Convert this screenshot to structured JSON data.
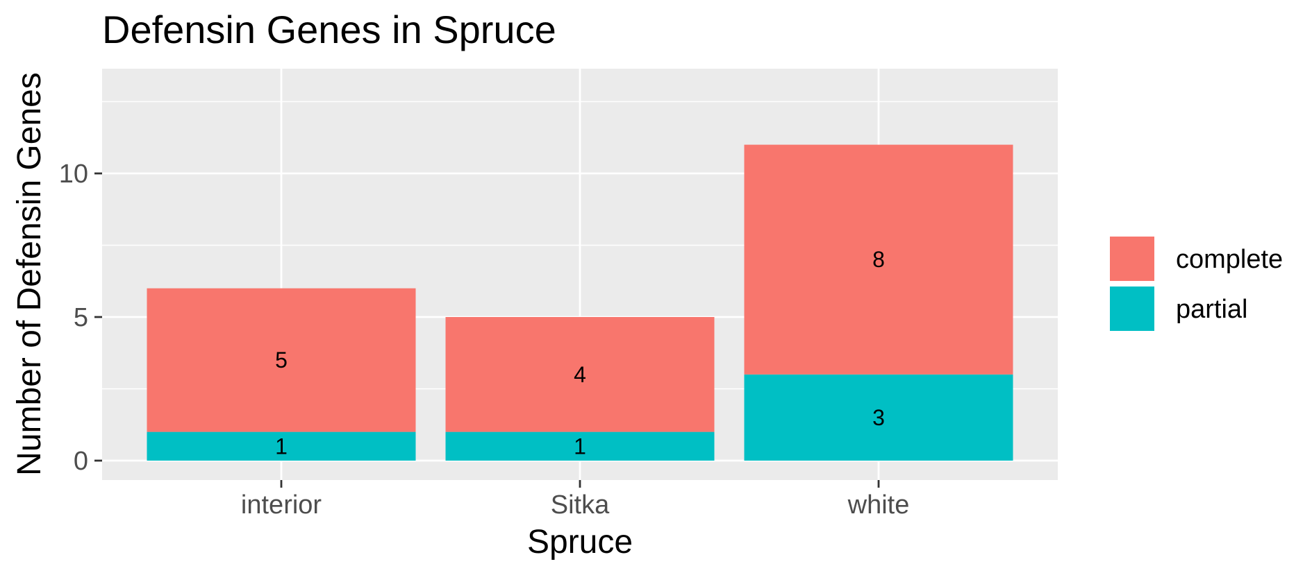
{
  "chart_data": {
    "type": "bar",
    "stacked": true,
    "title": "Defensin Genes in Spruce",
    "xlabel": "Spruce",
    "ylabel": "Number of Defensin Genes",
    "categories": [
      "interior",
      "Sitka",
      "white"
    ],
    "series": [
      {
        "name": "partial",
        "values": [
          1,
          1,
          3
        ],
        "color": "#00BFC4"
      },
      {
        "name": "complete",
        "values": [
          5,
          4,
          8
        ],
        "color": "#F8766D"
      }
    ],
    "ylim": [
      0,
      13.2
    ],
    "yticks": [
      0,
      5,
      10
    ],
    "ytick_labels": [
      "0",
      "5",
      "10"
    ],
    "grid": true,
    "panel_background": "#EBEBEB",
    "legend_position": "right",
    "legend": [
      {
        "label": "complete",
        "color": "#F8766D"
      },
      {
        "label": "partial",
        "color": "#00BFC4"
      }
    ]
  }
}
